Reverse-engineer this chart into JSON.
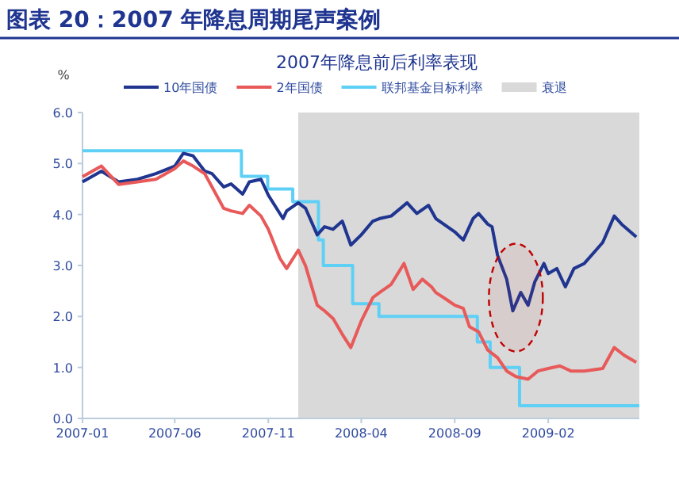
{
  "chart_data": {
    "type": "line",
    "title": "图表 20：2007 年降息周期尾声案例",
    "subtitle": "2007年降息前后利率表现",
    "ylabel": "%",
    "xlim": [
      "2007-01-01",
      "2009-06-30"
    ],
    "xticks": [
      {
        "value": "2007-01-01",
        "label": "2007-01"
      },
      {
        "value": "2007-06-01",
        "label": "2007-06"
      },
      {
        "value": "2007-11-01",
        "label": "2007-11"
      },
      {
        "value": "2008-04-01",
        "label": "2008-04"
      },
      {
        "value": "2008-09-01",
        "label": "2008-09"
      },
      {
        "value": "2009-02-01",
        "label": "2009-02"
      }
    ],
    "ylim": [
      0,
      6
    ],
    "yticks": [
      {
        "value": 0,
        "label": "0.0"
      },
      {
        "value": 1,
        "label": "1.0"
      },
      {
        "value": 2,
        "label": "2.0"
      },
      {
        "value": 3,
        "label": "3.0"
      },
      {
        "value": 4,
        "label": "4.0"
      },
      {
        "value": 5,
        "label": "5.0"
      },
      {
        "value": 6,
        "label": "6.0"
      }
    ],
    "legend": "top",
    "grid": false,
    "series": [
      {
        "name": "10年国债",
        "color": "#1f3590",
        "x": [
          "2007-01-01",
          "2007-02-01",
          "2007-03-01",
          "2007-04-01",
          "2007-05-01",
          "2007-06-01",
          "2007-06-15",
          "2007-07-01",
          "2007-07-20",
          "2007-08-01",
          "2007-08-20",
          "2007-09-01",
          "2007-09-20",
          "2007-10-01",
          "2007-10-20",
          "2007-11-01",
          "2007-11-25",
          "2007-12-01",
          "2007-12-20",
          "2008-01-01",
          "2008-01-20",
          "2008-02-01",
          "2008-02-15",
          "2008-03-01",
          "2008-03-15",
          "2008-04-01",
          "2008-04-20",
          "2008-05-01",
          "2008-05-20",
          "2008-06-15",
          "2008-07-01",
          "2008-07-20",
          "2008-08-01",
          "2008-08-20",
          "2008-09-01",
          "2008-09-15",
          "2008-10-01",
          "2008-10-10",
          "2008-10-25",
          "2008-11-01",
          "2008-11-10",
          "2008-11-25",
          "2008-12-05",
          "2008-12-18",
          "2008-12-30",
          "2009-01-10",
          "2009-01-25",
          "2009-02-01",
          "2009-02-15",
          "2009-03-01",
          "2009-03-15",
          "2009-04-01",
          "2009-04-20",
          "2009-05-01",
          "2009-05-20",
          "2009-06-01",
          "2009-06-25"
        ],
        "values": [
          4.64,
          4.85,
          4.64,
          4.69,
          4.8,
          4.95,
          5.2,
          5.15,
          4.85,
          4.8,
          4.54,
          4.6,
          4.4,
          4.64,
          4.69,
          4.38,
          3.92,
          4.07,
          4.23,
          4.12,
          3.6,
          3.76,
          3.71,
          3.87,
          3.4,
          3.6,
          3.87,
          3.92,
          3.97,
          4.23,
          4.02,
          4.18,
          3.92,
          3.76,
          3.66,
          3.5,
          3.92,
          4.02,
          3.81,
          3.76,
          3.2,
          2.73,
          2.11,
          2.47,
          2.22,
          2.68,
          3.04,
          2.84,
          2.94,
          2.58,
          2.94,
          3.04,
          3.3,
          3.45,
          3.97,
          3.81,
          3.56
        ]
      },
      {
        "name": "2年国债",
        "color": "#e8595a",
        "x": [
          "2007-01-01",
          "2007-02-01",
          "2007-03-01",
          "2007-04-01",
          "2007-05-01",
          "2007-06-01",
          "2007-06-15",
          "2007-07-01",
          "2007-07-20",
          "2007-08-01",
          "2007-08-20",
          "2007-09-01",
          "2007-09-20",
          "2007-10-01",
          "2007-10-20",
          "2007-11-01",
          "2007-11-20",
          "2007-12-01",
          "2007-12-20",
          "2008-01-01",
          "2008-01-20",
          "2008-02-01",
          "2008-02-15",
          "2008-03-01",
          "2008-03-15",
          "2008-04-01",
          "2008-04-20",
          "2008-05-01",
          "2008-05-20",
          "2008-06-10",
          "2008-06-25",
          "2008-07-10",
          "2008-07-25",
          "2008-08-01",
          "2008-08-20",
          "2008-09-01",
          "2008-09-15",
          "2008-09-25",
          "2008-10-10",
          "2008-10-25",
          "2008-11-10",
          "2008-11-25",
          "2008-12-10",
          "2008-12-30",
          "2009-01-15",
          "2009-02-01",
          "2009-02-20",
          "2009-03-10",
          "2009-04-01",
          "2009-05-01",
          "2009-05-20",
          "2009-06-05",
          "2009-06-25"
        ],
        "values": [
          4.74,
          4.95,
          4.59,
          4.64,
          4.69,
          4.9,
          5.05,
          4.95,
          4.8,
          4.54,
          4.12,
          4.07,
          4.02,
          4.18,
          3.97,
          3.71,
          3.14,
          2.94,
          3.3,
          2.99,
          2.22,
          2.11,
          1.96,
          1.65,
          1.39,
          1.91,
          2.37,
          2.47,
          2.63,
          3.04,
          2.53,
          2.73,
          2.58,
          2.47,
          2.32,
          2.22,
          2.16,
          1.8,
          1.7,
          1.34,
          1.19,
          0.93,
          0.82,
          0.77,
          0.93,
          0.98,
          1.03,
          0.93,
          0.93,
          0.98,
          1.39,
          1.24,
          1.1
        ]
      },
      {
        "name": "联邦基金目标利率",
        "color": "#5fd0f5",
        "type": "step",
        "x": [
          "2007-01-01",
          "2007-09-18",
          "2007-10-31",
          "2007-12-11",
          "2008-01-22",
          "2008-01-30",
          "2008-03-18",
          "2008-04-30",
          "2008-10-08",
          "2008-10-29",
          "2008-12-16",
          "2009-06-30"
        ],
        "values": [
          5.25,
          4.75,
          4.5,
          4.25,
          3.5,
          3.0,
          2.25,
          2.0,
          1.5,
          1.0,
          0.25,
          0.25
        ]
      }
    ],
    "bands": [
      {
        "axis": "x",
        "from": "2007-12-20",
        "to": "2009-06-30",
        "label": "衰退",
        "color": "#d9d9d9"
      }
    ]
  }
}
